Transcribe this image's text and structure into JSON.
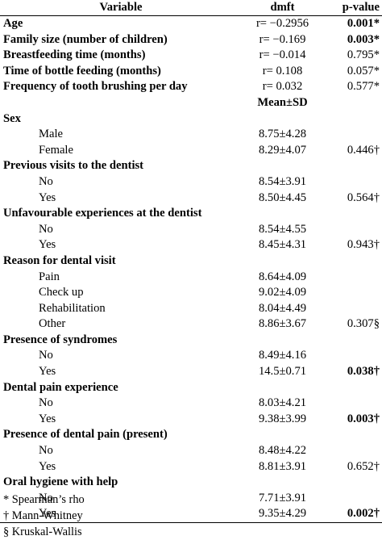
{
  "table": {
    "headers": [
      "Variable",
      "dmft",
      "p-value"
    ],
    "rows": [
      {
        "label": "Age",
        "style": "bold",
        "value": "r= −0.2956",
        "p": "0.001*",
        "p_bold": true
      },
      {
        "label": "Family size (number of children)",
        "style": "bold",
        "value": "r= −0.169",
        "p": "0.003*",
        "p_bold": true
      },
      {
        "label": "Breastfeeding time (months)",
        "style": "bold",
        "value": "r= −0.014",
        "p": "0.795*",
        "p_bold": false
      },
      {
        "label": "Time of bottle feeding (months)",
        "style": "bold",
        "value": "r= 0.108",
        "p": "0.057*",
        "p_bold": false
      },
      {
        "label": "Frequency of tooth brushing per day",
        "style": "bold",
        "value": "r= 0.032",
        "p": "0.577*",
        "p_bold": false
      },
      {
        "label": "",
        "style": "bold",
        "value": "Mean±SD",
        "value_bold": true,
        "p": ""
      },
      {
        "label": "Sex",
        "style": "bold",
        "value": "",
        "p": ""
      },
      {
        "label": "Male",
        "style": "sub",
        "value": "8.75±4.28",
        "p": ""
      },
      {
        "label": "Female",
        "style": "sub",
        "value": "8.29±4.07",
        "p": "0.446†"
      },
      {
        "label": "Previous visits to the dentist",
        "style": "bold",
        "value": "",
        "p": ""
      },
      {
        "label": "No",
        "style": "sub",
        "value": "8.54±3.91",
        "p": ""
      },
      {
        "label": "Yes",
        "style": "sub",
        "value": "8.50±4.45",
        "p": "0.564†"
      },
      {
        "label": "Unfavourable experiences at the dentist",
        "style": "bold",
        "value": "",
        "p": ""
      },
      {
        "label": "No",
        "style": "sub",
        "value": "8.54±4.55",
        "p": ""
      },
      {
        "label": "Yes",
        "style": "sub",
        "value": "8.45±4.31",
        "p": "0.943†"
      },
      {
        "label": "Reason for dental visit",
        "style": "bold",
        "value": "",
        "p": ""
      },
      {
        "label": "Pain",
        "style": "sub",
        "value": "8.64±4.09",
        "p": ""
      },
      {
        "label": "Check up",
        "style": "sub",
        "value": "9.02±4.09",
        "p": ""
      },
      {
        "label": "Rehabilitation",
        "style": "sub",
        "value": "8.04±4.49",
        "p": ""
      },
      {
        "label": "Other",
        "style": "sub",
        "value": "8.86±3.67",
        "p": "0.307§"
      },
      {
        "label": "Presence of syndromes",
        "style": "bold",
        "value": "",
        "p": ""
      },
      {
        "label": "No",
        "style": "sub",
        "value": "8.49±4.16",
        "p": ""
      },
      {
        "label": "Yes",
        "style": "sub",
        "value": "14.5±0.71",
        "p": "0.038†",
        "p_bold": true
      },
      {
        "label": "Dental pain experience",
        "style": "bold",
        "value": "",
        "p": ""
      },
      {
        "label": "No",
        "style": "sub",
        "value": "8.03±4.21",
        "p": ""
      },
      {
        "label": "Yes",
        "style": "sub",
        "value": "9.38±3.99",
        "p": "0.003†",
        "p_bold": true
      },
      {
        "label": "Presence of dental pain (present)",
        "style": "bold",
        "value": "",
        "p": ""
      },
      {
        "label": "No",
        "style": "sub",
        "value": "8.48±4.22",
        "p": ""
      },
      {
        "label": "Yes",
        "style": "sub",
        "value": "8.81±3.91",
        "p": "0.652†"
      },
      {
        "label": "Oral hygiene with help",
        "style": "bold",
        "value": "",
        "p": ""
      },
      {
        "label": "No",
        "style": "sub",
        "value": "7.71±3.91",
        "p": ""
      },
      {
        "label": "Yes",
        "style": "sub",
        "value": "9.35±4.29",
        "p": "0.002†",
        "p_bold": true
      }
    ]
  },
  "notes": [
    "* Spearman’s rho",
    "† Mann-Whitney",
    "§ Kruskal-Wallis"
  ]
}
